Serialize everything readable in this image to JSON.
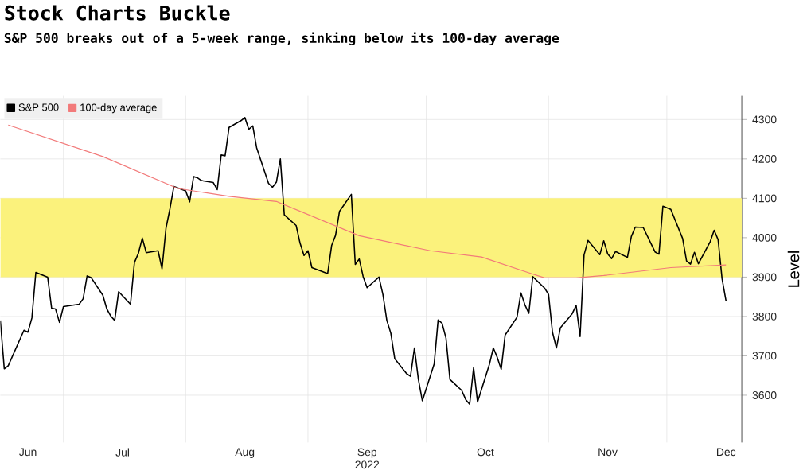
{
  "chart_data": {
    "type": "line",
    "title": "Stock Charts Buckle",
    "subtitle": "S&P 500 breaks out of a 5-week range, sinking below its 100-day average",
    "ylabel": "Level",
    "x": [
      "2022-06-15",
      "2022-06-16",
      "2022-06-17",
      "2022-06-21",
      "2022-06-22",
      "2022-06-23",
      "2022-06-24",
      "2022-06-27",
      "2022-06-28",
      "2022-06-29",
      "2022-06-30",
      "2022-07-01",
      "2022-07-05",
      "2022-07-06",
      "2022-07-07",
      "2022-07-08",
      "2022-07-11",
      "2022-07-12",
      "2022-07-13",
      "2022-07-14",
      "2022-07-15",
      "2022-07-18",
      "2022-07-19",
      "2022-07-20",
      "2022-07-21",
      "2022-07-22",
      "2022-07-25",
      "2022-07-26",
      "2022-07-27",
      "2022-07-28",
      "2022-07-29",
      "2022-08-01",
      "2022-08-02",
      "2022-08-03",
      "2022-08-04",
      "2022-08-05",
      "2022-08-08",
      "2022-08-09",
      "2022-08-10",
      "2022-08-11",
      "2022-08-12",
      "2022-08-15",
      "2022-08-16",
      "2022-08-17",
      "2022-08-18",
      "2022-08-19",
      "2022-08-22",
      "2022-08-23",
      "2022-08-24",
      "2022-08-25",
      "2022-08-26",
      "2022-08-29",
      "2022-08-30",
      "2022-08-31",
      "2022-09-01",
      "2022-09-02",
      "2022-09-06",
      "2022-09-07",
      "2022-09-08",
      "2022-09-09",
      "2022-09-12",
      "2022-09-13",
      "2022-09-14",
      "2022-09-15",
      "2022-09-16",
      "2022-09-19",
      "2022-09-20",
      "2022-09-21",
      "2022-09-22",
      "2022-09-23",
      "2022-09-26",
      "2022-09-27",
      "2022-09-28",
      "2022-09-29",
      "2022-09-30",
      "2022-10-03",
      "2022-10-04",
      "2022-10-05",
      "2022-10-06",
      "2022-10-07",
      "2022-10-10",
      "2022-10-11",
      "2022-10-12",
      "2022-10-13",
      "2022-10-14",
      "2022-10-17",
      "2022-10-18",
      "2022-10-19",
      "2022-10-20",
      "2022-10-21",
      "2022-10-24",
      "2022-10-25",
      "2022-10-26",
      "2022-10-27",
      "2022-10-28",
      "2022-10-31",
      "2022-11-01",
      "2022-11-02",
      "2022-11-03",
      "2022-11-04",
      "2022-11-07",
      "2022-11-08",
      "2022-11-09",
      "2022-11-10",
      "2022-11-11",
      "2022-11-14",
      "2022-11-15",
      "2022-11-16",
      "2022-11-17",
      "2022-11-18",
      "2022-11-21",
      "2022-11-22",
      "2022-11-23",
      "2022-11-25",
      "2022-11-28",
      "2022-11-29",
      "2022-11-30",
      "2022-12-01",
      "2022-12-02",
      "2022-12-05",
      "2022-12-06",
      "2022-12-07",
      "2022-12-08",
      "2022-12-09",
      "2022-12-12",
      "2022-12-13",
      "2022-12-14",
      "2022-12-15",
      "2022-12-16"
    ],
    "series": [
      {
        "name": "S&P 500",
        "color": "#000000",
        "values": [
          3790,
          3667,
          3675,
          3765,
          3760,
          3796,
          3912,
          3900,
          3821,
          3819,
          3785,
          3825,
          3831,
          3845,
          3903,
          3899,
          3854,
          3819,
          3801,
          3790,
          3863,
          3831,
          3937,
          3960,
          3999,
          3962,
          3967,
          3921,
          4024,
          4073,
          4130,
          4119,
          4091,
          4155,
          4152,
          4145,
          4140,
          4122,
          4210,
          4208,
          4280,
          4297,
          4305,
          4275,
          4284,
          4228,
          4138,
          4128,
          4141,
          4200,
          4058,
          4031,
          3986,
          3955,
          3967,
          3924,
          3909,
          3980,
          4006,
          4067,
          4110,
          3932,
          3946,
          3901,
          3873,
          3900,
          3856,
          3790,
          3758,
          3693,
          3655,
          3648,
          3720,
          3640,
          3586,
          3679,
          3791,
          3783,
          3745,
          3640,
          3612,
          3589,
          3577,
          3670,
          3583,
          3678,
          3720,
          3696,
          3666,
          3753,
          3798,
          3860,
          3830,
          3808,
          3901,
          3872,
          3856,
          3760,
          3720,
          3771,
          3807,
          3828,
          3749,
          3956,
          3993,
          3957,
          3992,
          3959,
          3947,
          3965,
          3950,
          4003,
          4027,
          4026,
          3964,
          3958,
          4080,
          4076,
          4072,
          3998,
          3941,
          3933,
          3963,
          3934,
          3990,
          4019,
          3995,
          3896,
          3840
        ]
      },
      {
        "name": "100-day average",
        "color": "#f27a7a",
        "x": [
          "2022-06-17",
          "2022-07-11",
          "2022-07-30",
          "2022-08-12",
          "2022-08-24",
          "2022-09-14",
          "2022-10-02",
          "2022-10-15",
          "2022-10-27",
          "2022-10-31",
          "2022-11-08",
          "2022-11-15",
          "2022-12-02",
          "2022-12-16"
        ],
        "values": [
          4286,
          4206,
          4125,
          4105,
          4092,
          4005,
          3967,
          3951,
          3911,
          3898,
          3898,
          3904,
          3924,
          3931
        ]
      }
    ],
    "xlim": [
      "2022-06-15",
      "2022-12-20"
    ],
    "xticks": [
      {
        "value": "2022-06-22",
        "label": "Jun"
      },
      {
        "value": "2022-07-01",
        "label": null
      },
      {
        "value": "2022-07-16",
        "label": "Jul"
      },
      {
        "value": "2022-08-01",
        "label": null
      },
      {
        "value": "2022-08-16",
        "label": "Aug"
      },
      {
        "value": "2022-09-01",
        "label": null
      },
      {
        "value": "2022-09-16",
        "label": "Sep 2022"
      },
      {
        "value": "2022-10-01",
        "label": null
      },
      {
        "value": "2022-10-16",
        "label": "Oct"
      },
      {
        "value": "2022-11-01",
        "label": null
      },
      {
        "value": "2022-11-16",
        "label": "Nov"
      },
      {
        "value": "2022-12-01",
        "label": null
      },
      {
        "value": "2022-12-16",
        "label": "Dec"
      }
    ],
    "ylim": [
      3480,
      4360
    ],
    "yticks": [
      3600,
      3700,
      3800,
      3900,
      4000,
      4100,
      4200,
      4300
    ],
    "grid": true,
    "legend": "top left",
    "bands": [
      {
        "axis": "y",
        "from": 3900,
        "to": 4100,
        "color": "#fbf27c"
      }
    ]
  }
}
